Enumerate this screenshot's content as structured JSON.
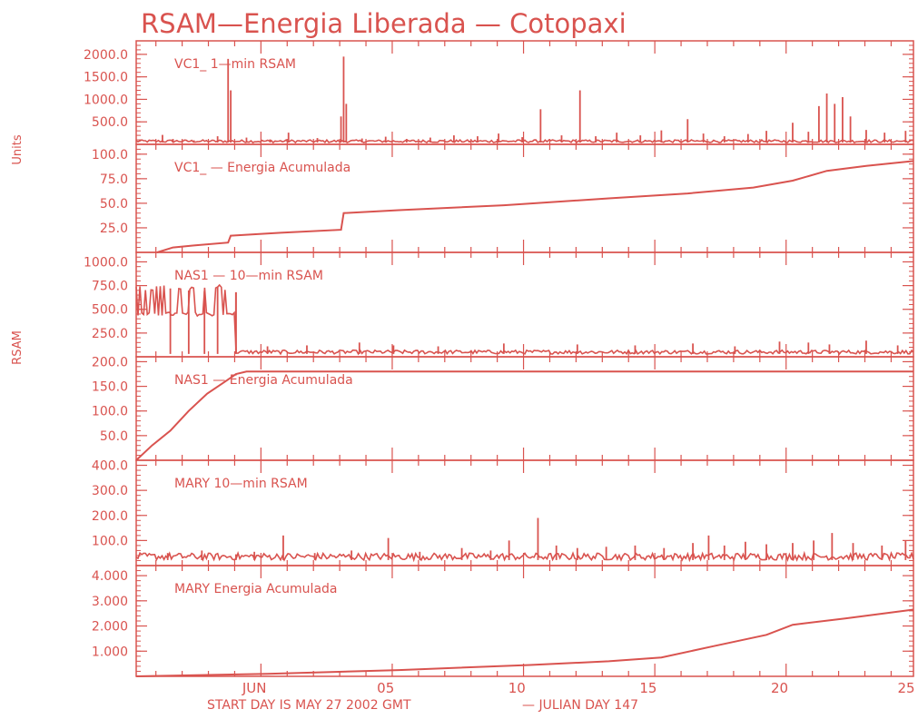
{
  "chart_data": {
    "type": "line",
    "title": "RSAM—Energia Liberada — Cotopaxi",
    "side_labels": [
      "Units",
      "RSAM"
    ],
    "color": "#d9534f",
    "footer": {
      "start_text": "START DAY IS MAY 27 2002 GMT",
      "julian_text": "— JULIAN DAY 147"
    },
    "x_axis": {
      "xlim": [
        0,
        29.6
      ],
      "tick_positions": [
        4.75,
        9.75,
        14.75,
        19.75,
        24.75,
        29.75
      ],
      "tick_labels": [
        "JUN",
        "05",
        "10",
        "15",
        "20",
        "25"
      ]
    },
    "panels": [
      {
        "label": "VC1_ 1—min RSAM",
        "ylim": [
          0,
          2300
        ],
        "yticks": [
          500,
          1000,
          1500,
          2000
        ],
        "ytick_labels": [
          "500.0",
          "1000.0",
          "1500.0",
          "2000.0"
        ],
        "series": {
          "kind": "spikes",
          "base": 40,
          "noise": 60,
          "spikes": [
            [
              1.0,
              210
            ],
            [
              1.4,
              120
            ],
            [
              2.2,
              90
            ],
            [
              3.1,
              180
            ],
            [
              3.5,
              1900
            ],
            [
              3.6,
              1200
            ],
            [
              4.2,
              150
            ],
            [
              5.1,
              110
            ],
            [
              5.8,
              260
            ],
            [
              6.9,
              140
            ],
            [
              7.8,
              620
            ],
            [
              7.9,
              1950
            ],
            [
              8.0,
              900
            ],
            [
              8.6,
              130
            ],
            [
              9.5,
              170
            ],
            [
              10.3,
              120
            ],
            [
              11.2,
              150
            ],
            [
              12.1,
              200
            ],
            [
              13.0,
              180
            ],
            [
              13.8,
              240
            ],
            [
              14.7,
              160
            ],
            [
              15.4,
              780
            ],
            [
              16.2,
              200
            ],
            [
              16.9,
              1200
            ],
            [
              17.5,
              180
            ],
            [
              18.3,
              260
            ],
            [
              19.2,
              200
            ],
            [
              20.0,
              310
            ],
            [
              21.0,
              560
            ],
            [
              21.6,
              240
            ],
            [
              22.4,
              180
            ],
            [
              23.3,
              230
            ],
            [
              24.0,
              300
            ],
            [
              25.0,
              480
            ],
            [
              25.6,
              280
            ],
            [
              26.0,
              850
            ],
            [
              26.3,
              1130
            ],
            [
              26.6,
              900
            ],
            [
              26.9,
              1050
            ],
            [
              27.2,
              620
            ],
            [
              27.8,
              320
            ],
            [
              28.5,
              260
            ],
            [
              29.3,
              300
            ]
          ]
        }
      },
      {
        "label": "VC1_ — Energia Acumulada",
        "ylim": [
          0,
          110
        ],
        "yticks": [
          25,
          50,
          75,
          100
        ],
        "ytick_labels": [
          "25.0",
          "50.0",
          "75.0",
          "100.0"
        ],
        "series": {
          "kind": "line",
          "x": [
            0.8,
            1.4,
            2.2,
            3.5,
            3.6,
            5.5,
            7.8,
            7.9,
            10.0,
            14.0,
            18.0,
            21.0,
            23.5,
            25.0,
            26.3,
            27.8,
            29.6
          ],
          "y": [
            0,
            5,
            7,
            10,
            17,
            20,
            23,
            40,
            43,
            48,
            55,
            60,
            66,
            73,
            83,
            88,
            93
          ]
        }
      },
      {
        "label": "NAS1 — 10—min RSAM",
        "ylim": [
          0,
          1100
        ],
        "yticks": [
          250,
          500,
          750,
          1000
        ],
        "ytick_labels": [
          "250.0",
          "500.0",
          "750.0",
          "1000.0"
        ],
        "series": {
          "kind": "spikes",
          "base": 30,
          "noise": 40,
          "busy_until": 3.8,
          "busy_low": 430,
          "busy_high": 760,
          "spikes": [
            [
              1.3,
              720
            ],
            [
              2.0,
              700
            ],
            [
              2.6,
              690
            ],
            [
              3.1,
              740
            ],
            [
              5.0,
              110
            ],
            [
              6.5,
              120
            ],
            [
              8.5,
              150
            ],
            [
              9.8,
              120
            ],
            [
              11.5,
              110
            ],
            [
              14.0,
              140
            ],
            [
              16.8,
              130
            ],
            [
              19.0,
              120
            ],
            [
              21.2,
              140
            ],
            [
              22.8,
              110
            ],
            [
              24.5,
              160
            ],
            [
              25.6,
              150
            ],
            [
              26.4,
              130
            ],
            [
              27.8,
              170
            ],
            [
              29.0,
              120
            ]
          ]
        }
      },
      {
        "label": "NAS1 — Energia Acumulada",
        "ylim": [
          0,
          210
        ],
        "yticks": [
          50,
          100,
          150,
          200
        ],
        "ytick_labels": [
          "50.0",
          "100.0",
          "150.0",
          "200.0"
        ],
        "series": {
          "kind": "line",
          "x": [
            0.0,
            0.6,
            1.3,
            2.0,
            2.7,
            3.4,
            3.8,
            4.2,
            29.6
          ],
          "y": [
            0,
            30,
            60,
            100,
            135,
            160,
            175,
            180,
            180
          ]
        }
      },
      {
        "label": "MARY 10—min RSAM",
        "ylim": [
          0,
          420
        ],
        "yticks": [
          100,
          200,
          300,
          400
        ],
        "ytick_labels": [
          "100.0",
          "200.0",
          "300.0",
          "400.0"
        ],
        "series": {
          "kind": "spikes",
          "base": 22,
          "noise": 28,
          "spikes": [
            [
              1.2,
              50
            ],
            [
              2.5,
              60
            ],
            [
              3.8,
              45
            ],
            [
              4.5,
              55
            ],
            [
              5.6,
              120
            ],
            [
              6.8,
              50
            ],
            [
              8.2,
              60
            ],
            [
              9.6,
              110
            ],
            [
              10.8,
              55
            ],
            [
              12.4,
              70
            ],
            [
              13.5,
              60
            ],
            [
              14.2,
              100
            ],
            [
              15.3,
              190
            ],
            [
              16.0,
              80
            ],
            [
              16.8,
              70
            ],
            [
              17.9,
              75
            ],
            [
              19.0,
              80
            ],
            [
              20.1,
              70
            ],
            [
              21.2,
              90
            ],
            [
              21.8,
              120
            ],
            [
              22.4,
              80
            ],
            [
              23.2,
              95
            ],
            [
              24.0,
              85
            ],
            [
              25.0,
              90
            ],
            [
              25.8,
              100
            ],
            [
              26.5,
              130
            ],
            [
              27.3,
              90
            ],
            [
              28.4,
              80
            ],
            [
              29.3,
              100
            ]
          ]
        }
      },
      {
        "label": "MARY Energia Acumulada",
        "ylim": [
          0,
          4.4
        ],
        "yticks": [
          1,
          2,
          3,
          4
        ],
        "ytick_labels": [
          "1.000",
          "2.000",
          "3.000",
          "4.000"
        ],
        "series": {
          "kind": "line",
          "x": [
            0.0,
            5.0,
            10.0,
            15.0,
            18.0,
            20.0,
            22.0,
            24.0,
            25.0,
            27.0,
            29.6
          ],
          "y": [
            0,
            0.1,
            0.25,
            0.45,
            0.6,
            0.75,
            1.2,
            1.65,
            2.05,
            2.3,
            2.65
          ]
        }
      }
    ]
  }
}
